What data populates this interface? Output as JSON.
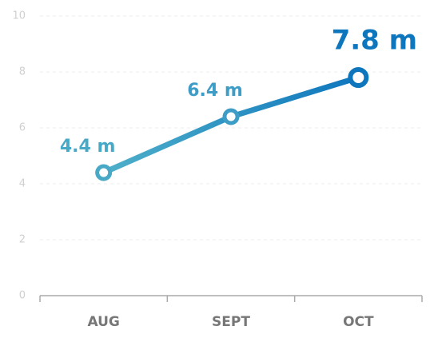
{
  "chart_data": {
    "type": "line",
    "categories": [
      "AUG",
      "SEPT",
      "OCT"
    ],
    "values": [
      4.4,
      6.4,
      7.8
    ],
    "value_labels": [
      "4.4 m",
      "6.4 m",
      "7.8 m"
    ],
    "colors": [
      "#4fb0c9",
      "#0e76bd"
    ],
    "point_colors": [
      "#48a9c7",
      "#3e9dc6",
      "#0e76bd"
    ],
    "ylim": [
      0,
      10
    ],
    "yticks": [
      0,
      2,
      4,
      6,
      8,
      10
    ],
    "grid": true
  }
}
